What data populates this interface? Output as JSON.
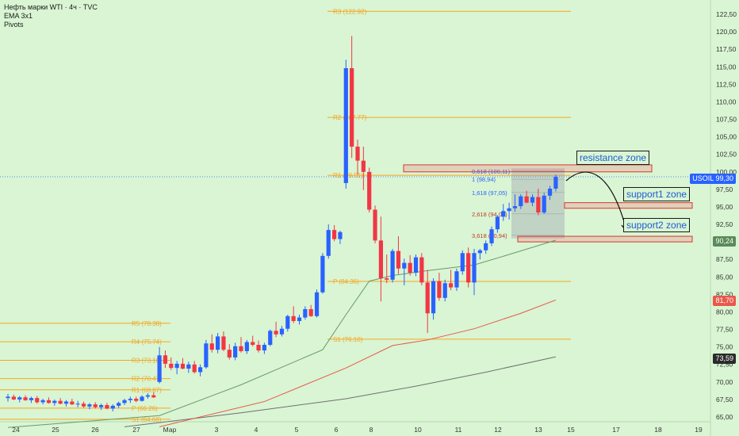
{
  "legend": {
    "title": "Нефть марки WTI · 4ч · TVC",
    "line2": "EMA 3x1",
    "line3": "Pivots"
  },
  "price_labels": {
    "symbol": "USOIL",
    "last": "99,30",
    "ema_fast": "90,24",
    "ema_mid": "81,70",
    "ema_slow": "73,59"
  },
  "zones": {
    "resistance": "resistance zone",
    "support1": "support1 zone",
    "support2": "support2 zone"
  },
  "colors": {
    "background": "#d9f5d3",
    "bull": "#2962ff",
    "bear": "#f23645",
    "pivot": "#f5a623",
    "ema_fast": "#6a9a6a",
    "ema_mid": "#e8584b",
    "ema_slow": "#707070"
  },
  "chart_data": {
    "type": "candlestick",
    "x_ticks": [
      "24",
      "25",
      "26",
      "27",
      "Мар",
      "3",
      "4",
      "5",
      "6",
      "8",
      "10",
      "11",
      "12",
      "13",
      "15",
      "17",
      "18",
      "19"
    ],
    "y_ticks": [
      "122,50",
      "120,00",
      "117,50",
      "115,00",
      "112,50",
      "110,00",
      "107,50",
      "105,00",
      "102,50",
      "100,00",
      "97,50",
      "95,00",
      "92,50",
      "90,00",
      "87,50",
      "85,00",
      "82,50",
      "80,00",
      "77,50",
      "75,00",
      "72,50",
      "70,00",
      "67,50",
      "65,00"
    ],
    "ylim": [
      64.5,
      125
    ],
    "pivots": [
      {
        "label": "R5 (78.38)",
        "value": 78.38
      },
      {
        "label": "R4 (75.74)",
        "value": 75.74
      },
      {
        "label": "R3 (73.10)",
        "value": 73.1
      },
      {
        "label": "R2 (70.47)",
        "value": 70.47
      },
      {
        "label": "R1 (68.87)",
        "value": 68.87
      },
      {
        "label": "P (66.26)",
        "value": 66.26
      },
      {
        "label": "S1 (64.68)",
        "value": 64.68
      },
      {
        "label": "R3 (122.92)",
        "value": 122.92
      },
      {
        "label": "R2 (107.77)",
        "value": 107.77
      },
      {
        "label": "R1 (99.51)",
        "value": 99.51
      },
      {
        "label": "P (84.36)",
        "value": 84.36
      },
      {
        "label": "S1 (76.10)",
        "value": 76.1
      }
    ],
    "fib_labels": [
      {
        "label": "0,618 (100,11)",
        "value": 100.11
      },
      {
        "label": "1 (98,94)",
        "value": 98.94
      },
      {
        "label": "1,618 (97,05)",
        "value": 97.05
      },
      {
        "label": "2,618 (94,00)",
        "value": 94.0
      },
      {
        "label": "3,618 (90,94)",
        "value": 90.94
      }
    ],
    "candles": [
      [
        67.7,
        68.3,
        67.2,
        67.9
      ],
      [
        67.9,
        68.2,
        67.4,
        67.5
      ],
      [
        67.5,
        68.0,
        67.1,
        67.8
      ],
      [
        67.8,
        68.1,
        67.3,
        67.4
      ],
      [
        67.4,
        67.9,
        67.0,
        67.7
      ],
      [
        67.7,
        68.0,
        66.9,
        67.1
      ],
      [
        67.1,
        67.6,
        66.8,
        67.4
      ],
      [
        67.4,
        67.8,
        66.9,
        67.0
      ],
      [
        67.0,
        67.5,
        66.6,
        67.3
      ],
      [
        67.3,
        67.7,
        66.8,
        66.9
      ],
      [
        66.9,
        67.4,
        66.5,
        67.2
      ],
      [
        67.2,
        67.6,
        66.7,
        66.8
      ],
      [
        66.8,
        67.3,
        66.4,
        66.9
      ],
      [
        66.9,
        67.2,
        66.3,
        66.5
      ],
      [
        66.5,
        67.0,
        66.1,
        66.8
      ],
      [
        66.8,
        67.1,
        66.2,
        66.4
      ],
      [
        66.4,
        66.9,
        66.0,
        66.7
      ],
      [
        66.7,
        67.0,
        66.1,
        66.2
      ],
      [
        66.2,
        66.8,
        65.8,
        66.6
      ],
      [
        66.6,
        67.2,
        66.3,
        67.0
      ],
      [
        67.0,
        67.6,
        66.7,
        67.4
      ],
      [
        67.4,
        67.9,
        67.0,
        67.6
      ],
      [
        67.6,
        67.9,
        67.1,
        67.3
      ],
      [
        67.3,
        68.1,
        67.2,
        67.9
      ],
      [
        67.9,
        68.4,
        67.6,
        68.1
      ],
      [
        68.1,
        68.5,
        67.7,
        67.8
      ],
      [
        70.0,
        75.0,
        69.8,
        73.8
      ],
      [
        73.8,
        74.5,
        72.0,
        72.6
      ],
      [
        72.6,
        73.5,
        71.7,
        72.0
      ],
      [
        72.0,
        73.0,
        71.1,
        72.6
      ],
      [
        72.6,
        73.4,
        71.8,
        71.9
      ],
      [
        71.9,
        72.9,
        71.3,
        72.5
      ],
      [
        72.5,
        73.0,
        71.2,
        71.4
      ],
      [
        71.4,
        72.5,
        70.8,
        72.1
      ],
      [
        72.1,
        76.0,
        71.9,
        75.5
      ],
      [
        75.5,
        76.8,
        74.2,
        74.6
      ],
      [
        74.6,
        77.0,
        74.1,
        76.5
      ],
      [
        76.5,
        77.2,
        74.4,
        74.6
      ],
      [
        74.6,
        75.4,
        73.2,
        73.5
      ],
      [
        73.5,
        75.6,
        73.1,
        75.1
      ],
      [
        75.1,
        76.4,
        74.2,
        74.4
      ],
      [
        74.4,
        76.0,
        74.0,
        75.7
      ],
      [
        75.7,
        76.6,
        75.1,
        75.3
      ],
      [
        75.3,
        75.9,
        74.2,
        74.5
      ],
      [
        74.5,
        75.6,
        74.0,
        75.3
      ],
      [
        75.3,
        77.5,
        75.1,
        77.3
      ],
      [
        77.3,
        78.6,
        76.4,
        76.8
      ],
      [
        76.8,
        78.0,
        76.5,
        77.6
      ],
      [
        77.6,
        79.6,
        77.2,
        79.4
      ],
      [
        79.4,
        80.8,
        78.4,
        78.7
      ],
      [
        78.7,
        79.6,
        78.2,
        79.2
      ],
      [
        79.2,
        80.8,
        78.9,
        80.4
      ],
      [
        80.4,
        81.0,
        79.3,
        79.4
      ],
      [
        79.4,
        83.2,
        79.2,
        82.8
      ],
      [
        82.8,
        88.4,
        82.6,
        88.0
      ],
      [
        88.0,
        92.5,
        87.6,
        91.7
      ],
      [
        91.7,
        92.4,
        90.1,
        90.4
      ],
      [
        90.4,
        91.6,
        89.7,
        91.4
      ],
      [
        98.4,
        116.0,
        97.6,
        114.8
      ],
      [
        114.8,
        119.4,
        102.0,
        103.6
      ],
      [
        103.6,
        104.6,
        99.6,
        101.6
      ],
      [
        101.6,
        103.6,
        97.4,
        100.0
      ],
      [
        100.0,
        100.6,
        94.2,
        94.6
      ],
      [
        94.6,
        95.2,
        89.8,
        90.2
      ],
      [
        90.2,
        93.6,
        81.5,
        84.8
      ],
      [
        84.8,
        88.2,
        84.1,
        84.6
      ],
      [
        84.6,
        89.0,
        84.2,
        88.7
      ],
      [
        88.7,
        90.8,
        85.4,
        86.2
      ],
      [
        86.2,
        87.6,
        83.8,
        87.0
      ],
      [
        87.0,
        88.1,
        85.2,
        85.6
      ],
      [
        85.6,
        88.2,
        85.1,
        87.8
      ],
      [
        87.8,
        88.4,
        83.8,
        84.2
      ],
      [
        84.2,
        86.0,
        77.0,
        79.8
      ],
      [
        79.8,
        84.8,
        78.9,
        84.4
      ],
      [
        84.4,
        85.6,
        81.6,
        82.0
      ],
      [
        82.0,
        84.6,
        81.5,
        84.1
      ],
      [
        84.1,
        86.0,
        83.1,
        83.5
      ],
      [
        83.5,
        86.2,
        83.0,
        85.8
      ],
      [
        85.8,
        88.8,
        85.3,
        88.4
      ],
      [
        88.4,
        89.2,
        83.5,
        84.2
      ],
      [
        84.2,
        89.0,
        82.4,
        88.4
      ],
      [
        88.4,
        89.0,
        87.5,
        88.8
      ],
      [
        88.8,
        90.2,
        88.3,
        89.8
      ],
      [
        89.8,
        92.2,
        89.4,
        91.8
      ],
      [
        91.8,
        93.8,
        91.3,
        93.6
      ],
      [
        93.6,
        95.4,
        93.0,
        94.4
      ],
      [
        94.4,
        95.6,
        93.2,
        94.8
      ],
      [
        94.8,
        96.8,
        94.3,
        95.1
      ],
      [
        95.1,
        96.8,
        94.7,
        96.5
      ],
      [
        96.5,
        97.3,
        95.5,
        95.6
      ],
      [
        95.6,
        96.8,
        95.1,
        96.4
      ],
      [
        96.4,
        97.6,
        93.8,
        94.2
      ],
      [
        94.2,
        97.0,
        94.0,
        96.6
      ],
      [
        96.6,
        98.0,
        96.0,
        97.6
      ],
      [
        97.6,
        99.6,
        97.2,
        99.3
      ]
    ],
    "ema_fast": [
      [
        0,
        63.5
      ],
      [
        26,
        65.2
      ],
      [
        40,
        69.6
      ],
      [
        54,
        74.6
      ],
      [
        58,
        79.6
      ],
      [
        62,
        84.4
      ],
      [
        66,
        85.2
      ],
      [
        72,
        85.9
      ],
      [
        80,
        86.7
      ],
      [
        86,
        88.2
      ],
      [
        94,
        90.24
      ]
    ],
    "ema_mid": [
      [
        26,
        63.6
      ],
      [
        44,
        67.2
      ],
      [
        58,
        72.0
      ],
      [
        66,
        75.2
      ],
      [
        72,
        76.0
      ],
      [
        80,
        77.6
      ],
      [
        88,
        79.8
      ],
      [
        94,
        81.7
      ]
    ],
    "ema_slow": [
      [
        20,
        63.6
      ],
      [
        40,
        65.6
      ],
      [
        58,
        67.6
      ],
      [
        70,
        69.4
      ],
      [
        82,
        71.4
      ],
      [
        94,
        73.59
      ]
    ]
  }
}
